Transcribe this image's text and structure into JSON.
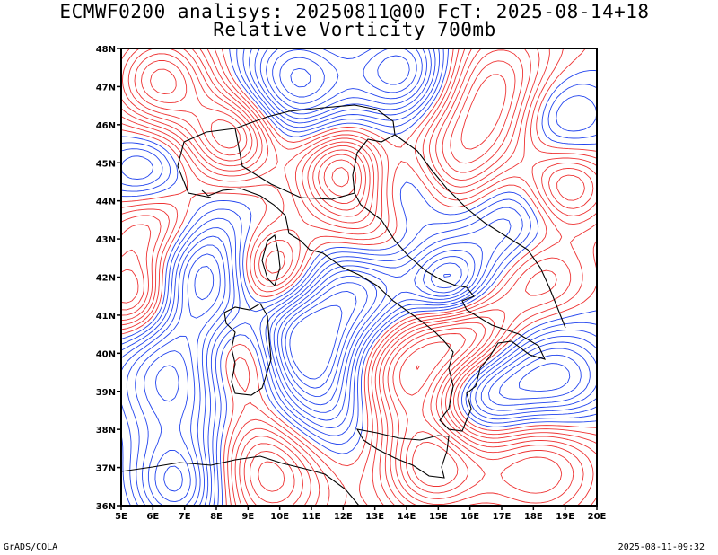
{
  "title_line1": "ECMWF0200 analisys: 20250811@00 FcT: 2025-08-14+18",
  "title_line2": "Relative Vorticity 700mb",
  "footer_left": "GrADS/COLA",
  "footer_right": "2025-08-11-09:32",
  "lat_labels": [
    "48N",
    "47N",
    "46N",
    "45N",
    "44N",
    "43N",
    "42N",
    "41N",
    "40N",
    "39N",
    "38N",
    "37N",
    "36N"
  ],
  "lon_labels": [
    "5E",
    "6E",
    "7E",
    "8E",
    "9E",
    "10E",
    "11E",
    "12E",
    "13E",
    "14E",
    "15E",
    "16E",
    "17E",
    "18E",
    "19E",
    "20E"
  ],
  "map_extent": {
    "lon_min": 5,
    "lon_max": 20,
    "lat_min": 36,
    "lat_max": 48
  },
  "colors": {
    "positive": "#ee3333",
    "negative": "#2244ee",
    "zero": "#cc66cc",
    "coast": "#000000"
  }
}
